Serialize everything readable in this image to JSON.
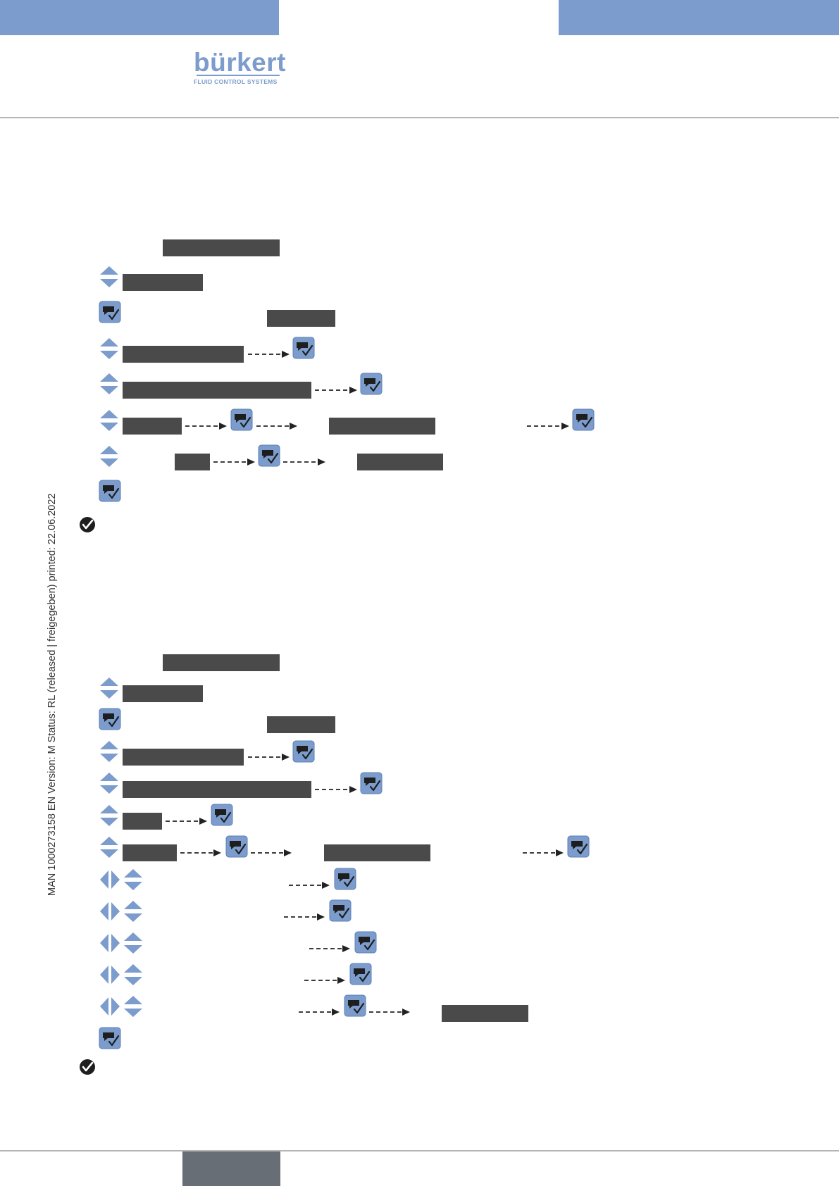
{
  "header": {
    "brand_name": "bürkert",
    "brand_tagline": "FLUID CONTROL SYSTEMS",
    "brand_color": "#7b9ccc"
  },
  "sidebar": {
    "document_info": "MAN  1000273158  EN  Version: M Status: RL (released | freigegeben)  printed: 22.06.2022"
  },
  "icons": {
    "up_down": "up-down-arrow-icon",
    "left_right": "left-right-arrow-icon",
    "confirm": "confirm-key-icon",
    "result": "result-check-icon",
    "arrow": "dashed-arrow-icon"
  },
  "colors": {
    "redaction": "#4a4a4a",
    "accent": "#7b9ccc",
    "footer_tab": "#686e76"
  }
}
